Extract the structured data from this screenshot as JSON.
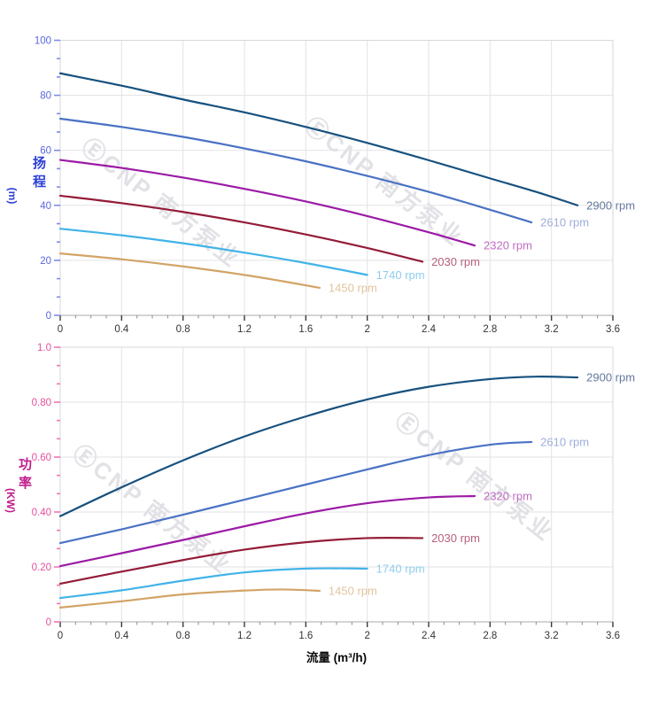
{
  "watermark": {
    "text": "ⒺCNP 南方泵业"
  },
  "palette": {
    "grid": "#e3e3e7",
    "border": "#d7d7db",
    "axis_line": "#aaaaae",
    "x_major_tick": "#3a3a3a",
    "x_minor_tick": "#8d8d8d",
    "x_label": "#333333"
  },
  "chart_data": [
    {
      "type": "line",
      "id": "head-vs-flow",
      "x_axis": {
        "min": 0,
        "max": 3.6,
        "major_step": 0.4,
        "minor_step": 0.1,
        "tick_labels": [
          "0",
          "0.4",
          "0.8",
          "1.2",
          "1.6",
          "2",
          "2.4",
          "2.8",
          "3.2",
          "3.6"
        ]
      },
      "y_axis": {
        "title_cjk": "扬程",
        "title_unit": "(m)",
        "min": 0,
        "max": 100,
        "major_step": 20,
        "tick_labels": [
          "0",
          "20",
          "40",
          "60",
          "80",
          "100"
        ],
        "tick_color": "#7d8ce8",
        "label_color": "#5a68dd",
        "title_color": "#2b3fd4"
      },
      "series": [
        {
          "name": "2900 rpm",
          "color": "#17517e",
          "label_color": "#64789d",
          "x": [
            0,
            0.4,
            0.8,
            1.2,
            1.6,
            2.0,
            2.4,
            2.8,
            3.1,
            3.37
          ],
          "y": [
            88,
            83.5,
            78.5,
            73.8,
            68.5,
            62.7,
            56.4,
            49.8,
            44.9,
            40
          ]
        },
        {
          "name": "2610 rpm",
          "color": "#4a72c4",
          "label_color": "#9dadd9",
          "x": [
            0,
            0.4,
            0.8,
            1.2,
            1.6,
            2.0,
            2.4,
            2.8,
            3.07
          ],
          "y": [
            71.5,
            68.5,
            64.9,
            60.7,
            56,
            50.7,
            44.9,
            38.4,
            33.8
          ]
        },
        {
          "name": "2320 rpm",
          "color": "#9b1ba5",
          "label_color": "#c06cc0",
          "x": [
            0,
            0.4,
            0.8,
            1.2,
            1.6,
            2.0,
            2.4,
            2.7
          ],
          "y": [
            56.5,
            53.6,
            50.1,
            46,
            41.4,
            36.1,
            30.2,
            25.4
          ]
        },
        {
          "name": "2030 rpm",
          "color": "#941c38",
          "label_color": "#b5607f",
          "x": [
            0,
            0.4,
            0.8,
            1.2,
            1.6,
            2.0,
            2.36
          ],
          "y": [
            43.5,
            40.8,
            37.6,
            33.8,
            29.4,
            24.5,
            19.5
          ]
        },
        {
          "name": "1740 rpm",
          "color": "#41b3e8",
          "label_color": "#8fcdec",
          "x": [
            0,
            0.4,
            0.8,
            1.2,
            1.6,
            2.0
          ],
          "y": [
            31.5,
            29.1,
            26.2,
            22.8,
            19,
            14.7
          ]
        },
        {
          "name": "1450 rpm",
          "color": "#d2a467",
          "label_color": "#e2c49d",
          "x": [
            0,
            0.4,
            0.8,
            1.2,
            1.45,
            1.69
          ],
          "y": [
            22.5,
            20.4,
            17.8,
            14.7,
            12.4,
            10
          ]
        }
      ]
    },
    {
      "type": "line",
      "id": "power-vs-flow",
      "x_axis": {
        "title": "流量 (m³/h)",
        "min": 0,
        "max": 3.6,
        "major_step": 0.4,
        "minor_step": 0.1,
        "tick_labels": [
          "0",
          "0.4",
          "0.8",
          "1.2",
          "1.6",
          "2",
          "2.4",
          "2.8",
          "3.2",
          "3.6"
        ]
      },
      "y_axis": {
        "title_cjk": "功率",
        "title_unit": "(KW)",
        "min": 0,
        "max": 1.0,
        "major_step": 0.2,
        "tick_labels": [
          "0",
          "0.20",
          "0.40",
          "0.60",
          "0.80",
          "1.0"
        ],
        "tick_color": "#ef74b6",
        "label_color": "#e5509d",
        "title_color": "#c01e8c"
      },
      "series": [
        {
          "name": "2900 rpm",
          "color": "#17517e",
          "label_color": "#64789d",
          "x": [
            0,
            0.4,
            0.8,
            1.2,
            1.6,
            2.0,
            2.4,
            2.8,
            3.1,
            3.37
          ],
          "y": [
            0.385,
            0.49,
            0.588,
            0.675,
            0.748,
            0.81,
            0.856,
            0.884,
            0.893,
            0.89
          ]
        },
        {
          "name": "2610 rpm",
          "color": "#4a72c4",
          "label_color": "#9dadd9",
          "x": [
            0,
            0.4,
            0.8,
            1.2,
            1.6,
            2.0,
            2.4,
            2.8,
            3.07
          ],
          "y": [
            0.287,
            0.337,
            0.39,
            0.445,
            0.5,
            0.555,
            0.607,
            0.645,
            0.655
          ]
        },
        {
          "name": "2320 rpm",
          "color": "#9b1ba5",
          "label_color": "#c06cc0",
          "x": [
            0,
            0.4,
            0.8,
            1.2,
            1.6,
            2.0,
            2.4,
            2.7
          ],
          "y": [
            0.203,
            0.25,
            0.298,
            0.348,
            0.395,
            0.432,
            0.453,
            0.458
          ]
        },
        {
          "name": "2030 rpm",
          "color": "#941c38",
          "label_color": "#b5607f",
          "x": [
            0,
            0.4,
            0.8,
            1.2,
            1.6,
            2.0,
            2.36
          ],
          "y": [
            0.139,
            0.183,
            0.225,
            0.263,
            0.29,
            0.305,
            0.305
          ]
        },
        {
          "name": "1740 rpm",
          "color": "#41b3e8",
          "label_color": "#8fcdec",
          "x": [
            0,
            0.4,
            0.8,
            1.2,
            1.6,
            2.0
          ],
          "y": [
            0.087,
            0.115,
            0.15,
            0.18,
            0.194,
            0.194
          ]
        },
        {
          "name": "1450 rpm",
          "color": "#d2a467",
          "label_color": "#e2c49d",
          "x": [
            0,
            0.4,
            0.8,
            1.2,
            1.45,
            1.69
          ],
          "y": [
            0.052,
            0.075,
            0.1,
            0.114,
            0.118,
            0.113
          ]
        }
      ]
    }
  ]
}
